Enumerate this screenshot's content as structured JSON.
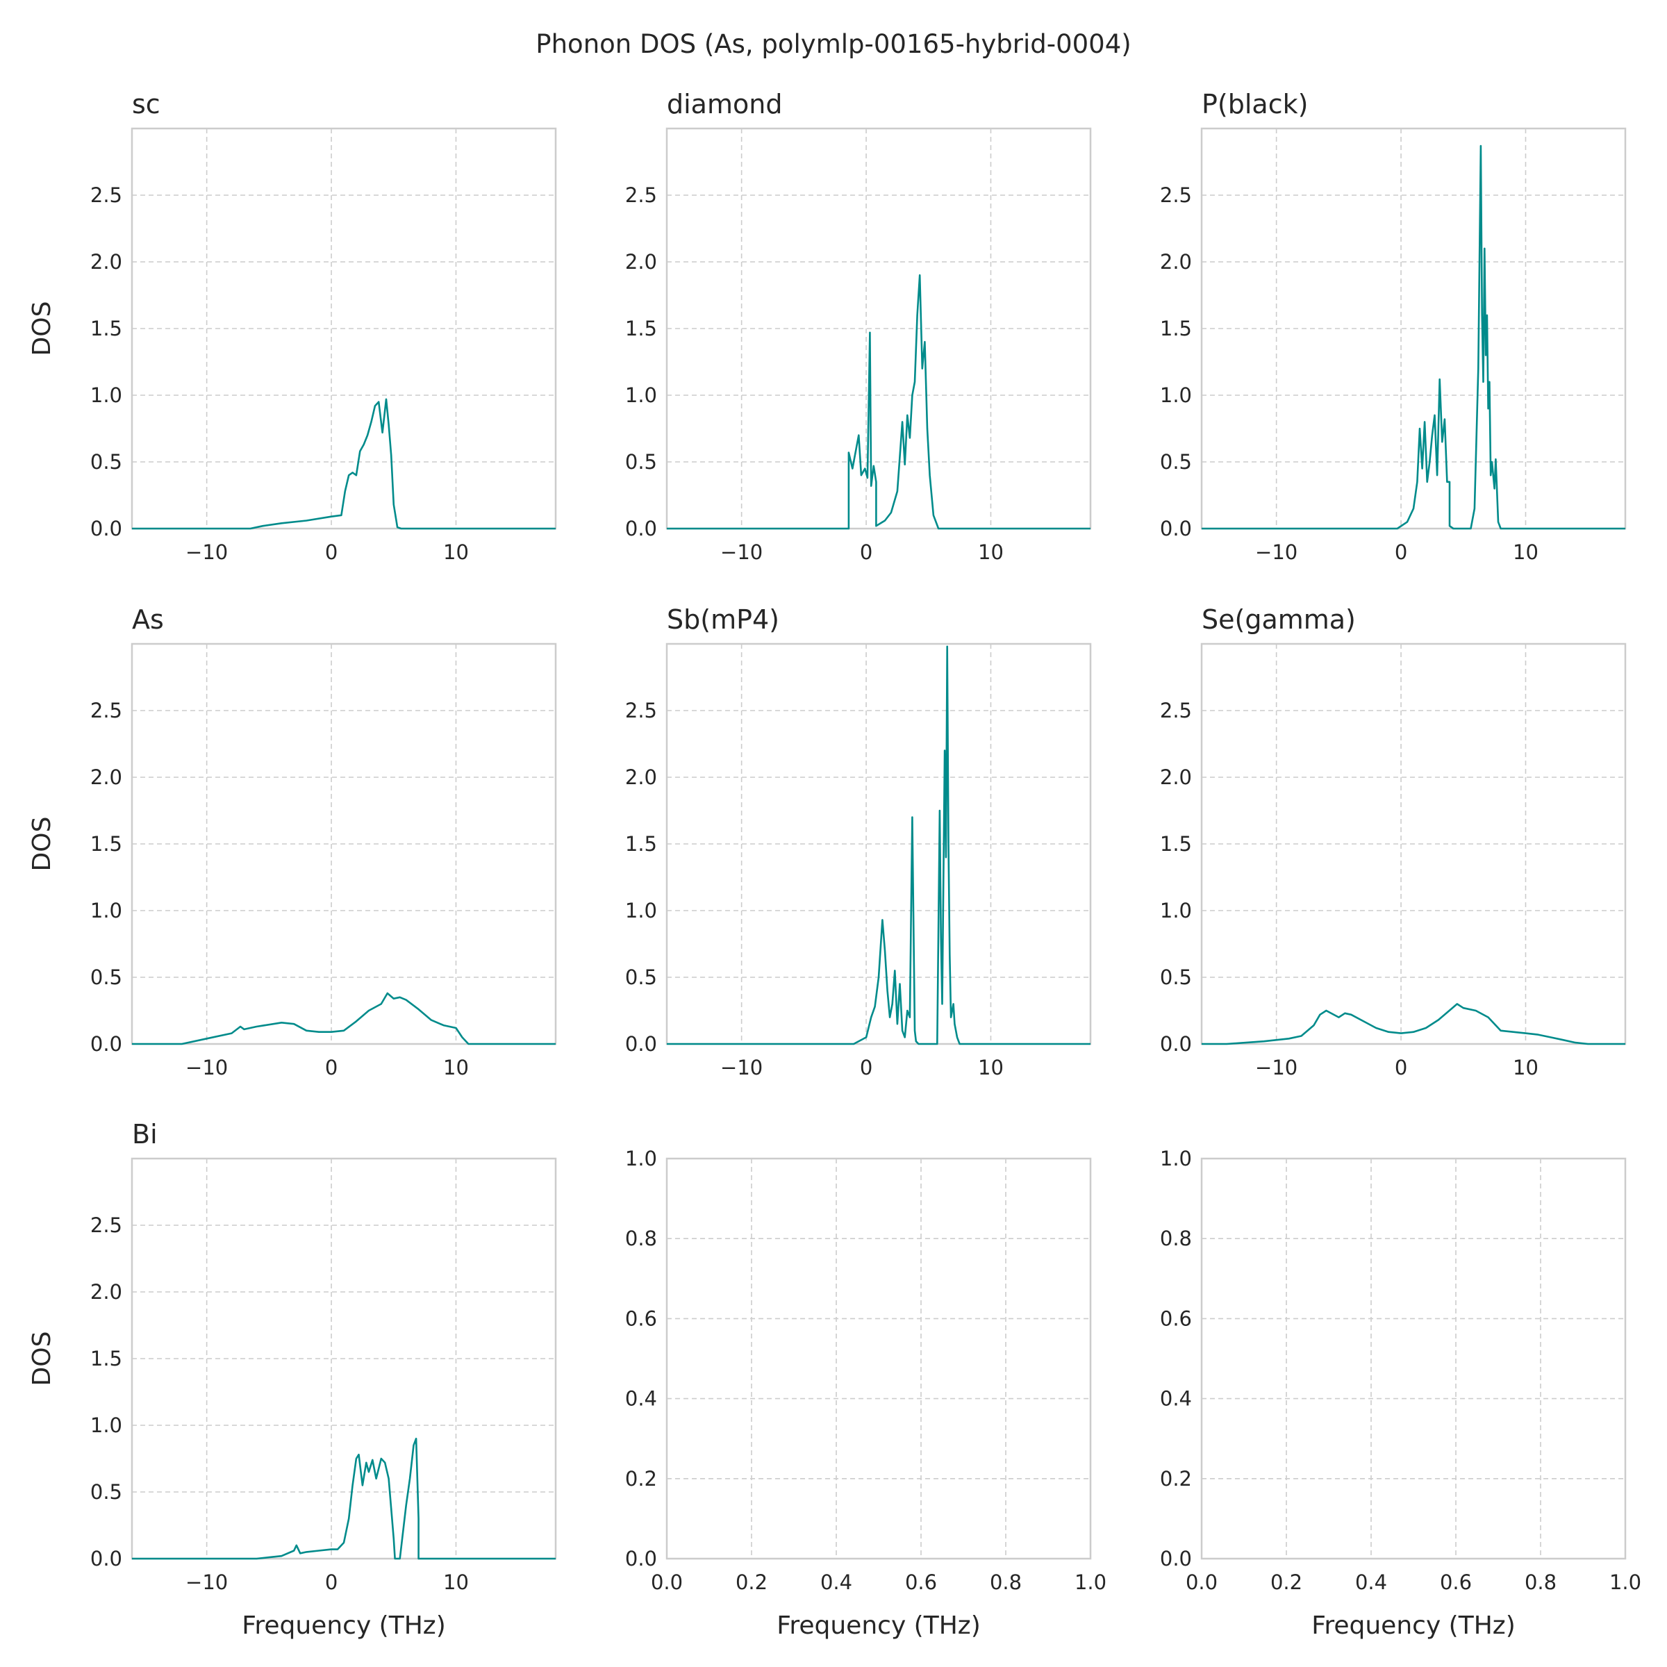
{
  "figure": {
    "title": "Phonon DOS (As, polymlp-00165-hybrid-0004)",
    "line_color": "#008b8b",
    "grid_color": "#cccccc"
  },
  "chart_data": [
    {
      "id": "sc",
      "type": "line",
      "title": "sc",
      "xlabel": "",
      "ylabel": "DOS",
      "xlim": [
        -16,
        18
      ],
      "ylim": [
        0,
        3.0
      ],
      "xticks": [
        -10,
        0,
        10
      ],
      "xticklabels": [
        "−10",
        "0",
        "10"
      ],
      "yticks": [
        0,
        0.5,
        1.0,
        1.5,
        2.0,
        2.5
      ],
      "yticklabels": [
        "0.0",
        "0.5",
        "1.0",
        "1.5",
        "2.0",
        "2.5"
      ],
      "series": [
        {
          "name": "DOS",
          "x": [
            -16,
            -6.5,
            -5.5,
            -4,
            -2,
            0,
            0.8,
            1.1,
            1.4,
            1.7,
            2.0,
            2.3,
            2.6,
            2.9,
            3.2,
            3.5,
            3.8,
            4.1,
            4.4,
            4.6,
            4.8,
            5.0,
            5.3,
            5.6,
            6.5,
            18
          ],
          "y": [
            0,
            0,
            0.02,
            0.04,
            0.06,
            0.09,
            0.1,
            0.28,
            0.4,
            0.42,
            0.4,
            0.58,
            0.63,
            0.7,
            0.8,
            0.92,
            0.95,
            0.72,
            0.97,
            0.78,
            0.55,
            0.18,
            0.01,
            0,
            0,
            0
          ]
        }
      ]
    },
    {
      "id": "diamond",
      "type": "line",
      "title": "diamond",
      "xlabel": "",
      "ylabel": "",
      "xlim": [
        -16,
        18
      ],
      "ylim": [
        0,
        3.0
      ],
      "xticks": [
        -10,
        0,
        10
      ],
      "xticklabels": [
        "−10",
        "0",
        "10"
      ],
      "yticks": [
        0,
        0.5,
        1.0,
        1.5,
        2.0,
        2.5
      ],
      "yticklabels": [
        "0.0",
        "0.5",
        "1.0",
        "1.5",
        "2.0",
        "2.5"
      ],
      "series": [
        {
          "name": "DOS",
          "x": [
            -16,
            -1.4,
            -1.4,
            -1.1,
            -0.8,
            -0.6,
            -0.4,
            -0.1,
            0.1,
            0.3,
            0.4,
            0.6,
            0.8,
            0.8,
            1.5,
            2.0,
            2.5,
            2.9,
            3.1,
            3.3,
            3.5,
            3.7,
            3.9,
            4.1,
            4.3,
            4.5,
            4.7,
            4.9,
            5.1,
            5.4,
            5.8,
            18
          ],
          "y": [
            0,
            0,
            0.57,
            0.45,
            0.6,
            0.7,
            0.4,
            0.45,
            0.38,
            1.47,
            0.32,
            0.47,
            0.35,
            0.02,
            0.06,
            0.12,
            0.28,
            0.8,
            0.48,
            0.85,
            0.68,
            1.0,
            1.1,
            1.6,
            1.9,
            1.2,
            1.4,
            0.75,
            0.4,
            0.1,
            0,
            0
          ]
        }
      ]
    },
    {
      "id": "pblack",
      "type": "line",
      "title": "P(black)",
      "xlabel": "",
      "ylabel": "",
      "xlim": [
        -16,
        18
      ],
      "ylim": [
        0,
        3.0
      ],
      "xticks": [
        -10,
        0,
        10
      ],
      "xticklabels": [
        "−10",
        "0",
        "10"
      ],
      "yticks": [
        0,
        0.5,
        1.0,
        1.5,
        2.0,
        2.5
      ],
      "yticklabels": [
        "0.0",
        "0.5",
        "1.0",
        "1.5",
        "2.0",
        "2.5"
      ],
      "series": [
        {
          "name": "DOS",
          "x": [
            -16,
            -0.3,
            0.5,
            1.0,
            1.3,
            1.5,
            1.7,
            1.9,
            2.1,
            2.3,
            2.5,
            2.7,
            2.9,
            3.1,
            3.3,
            3.5,
            3.7,
            3.9,
            3.9,
            4.2,
            5.6,
            5.9,
            6.2,
            6.4,
            6.5,
            6.6,
            6.7,
            6.8,
            6.9,
            7.0,
            7.1,
            7.2,
            7.3,
            7.5,
            7.6,
            7.8,
            8.0,
            18
          ],
          "y": [
            0,
            0,
            0.05,
            0.15,
            0.35,
            0.75,
            0.45,
            0.8,
            0.35,
            0.5,
            0.7,
            0.85,
            0.4,
            1.12,
            0.65,
            0.82,
            0.35,
            0.35,
            0.02,
            0,
            0,
            0.15,
            1.2,
            2.87,
            1.6,
            1.1,
            2.1,
            1.3,
            1.6,
            0.9,
            1.1,
            0.4,
            0.5,
            0.3,
            0.52,
            0.05,
            0,
            0
          ]
        }
      ]
    },
    {
      "id": "as",
      "type": "line",
      "title": "As",
      "xlabel": "",
      "ylabel": "DOS",
      "xlim": [
        -16,
        18
      ],
      "ylim": [
        0,
        3.0
      ],
      "xticks": [
        -10,
        0,
        10
      ],
      "xticklabels": [
        "−10",
        "0",
        "10"
      ],
      "yticks": [
        0,
        0.5,
        1.0,
        1.5,
        2.0,
        2.5
      ],
      "yticklabels": [
        "0.0",
        "0.5",
        "1.0",
        "1.5",
        "2.0",
        "2.5"
      ],
      "series": [
        {
          "name": "DOS",
          "x": [
            -16,
            -12,
            -10,
            -8,
            -7.3,
            -7,
            -6,
            -4,
            -3,
            -2,
            -1,
            0,
            1,
            2,
            3,
            4,
            4.5,
            5,
            5.5,
            6,
            7,
            8,
            9,
            10,
            10.5,
            11,
            18
          ],
          "y": [
            0,
            0,
            0.04,
            0.08,
            0.13,
            0.11,
            0.13,
            0.16,
            0.15,
            0.1,
            0.09,
            0.09,
            0.1,
            0.17,
            0.25,
            0.3,
            0.38,
            0.34,
            0.35,
            0.33,
            0.26,
            0.18,
            0.14,
            0.12,
            0.05,
            0,
            0
          ]
        }
      ]
    },
    {
      "id": "sbmp4",
      "type": "line",
      "title": "Sb(mP4)",
      "xlabel": "",
      "ylabel": "",
      "xlim": [
        -16,
        18
      ],
      "ylim": [
        0,
        3.0
      ],
      "xticks": [
        -10,
        0,
        10
      ],
      "xticklabels": [
        "−10",
        "0",
        "10"
      ],
      "yticks": [
        0,
        0.5,
        1.0,
        1.5,
        2.0,
        2.5
      ],
      "yticklabels": [
        "0.0",
        "0.5",
        "1.0",
        "1.5",
        "2.0",
        "2.5"
      ],
      "series": [
        {
          "name": "DOS",
          "x": [
            -16,
            -1,
            0,
            0.4,
            0.7,
            1.0,
            1.3,
            1.5,
            1.7,
            1.9,
            2.1,
            2.3,
            2.5,
            2.7,
            2.9,
            3.1,
            3.3,
            3.5,
            3.7,
            3.9,
            4.0,
            4.2,
            5.7,
            5.9,
            6.0,
            6.1,
            6.3,
            6.4,
            6.5,
            6.6,
            6.7,
            6.8,
            7.0,
            7.1,
            7.3,
            7.5,
            7.7,
            18
          ],
          "y": [
            0,
            0,
            0.05,
            0.2,
            0.28,
            0.5,
            0.93,
            0.7,
            0.4,
            0.2,
            0.3,
            0.55,
            0.15,
            0.45,
            0.1,
            0.05,
            0.25,
            0.2,
            1.7,
            0.1,
            0.02,
            0,
            0,
            1.75,
            0.8,
            0.3,
            2.2,
            1.4,
            2.98,
            1.5,
            0.67,
            0.2,
            0.3,
            0.15,
            0.05,
            0,
            0,
            0
          ]
        }
      ]
    },
    {
      "id": "segamma",
      "type": "line",
      "title": "Se(gamma)",
      "xlabel": "",
      "ylabel": "",
      "xlim": [
        -16,
        18
      ],
      "ylim": [
        0,
        3.0
      ],
      "xticks": [
        -10,
        0,
        10
      ],
      "xticklabels": [
        "−10",
        "0",
        "10"
      ],
      "yticks": [
        0,
        0.5,
        1.0,
        1.5,
        2.0,
        2.5
      ],
      "yticklabels": [
        "0.0",
        "0.5",
        "1.0",
        "1.5",
        "2.0",
        "2.5"
      ],
      "series": [
        {
          "name": "DOS",
          "x": [
            -16,
            -14,
            -11,
            -9,
            -8,
            -7,
            -6.5,
            -6,
            -5,
            -4.5,
            -4,
            -3,
            -2,
            -1,
            0,
            1,
            2,
            3,
            4,
            4.5,
            5,
            6,
            7,
            8,
            9,
            10,
            11,
            12,
            13,
            14,
            15,
            18
          ],
          "y": [
            0,
            0,
            0.02,
            0.04,
            0.06,
            0.14,
            0.22,
            0.25,
            0.2,
            0.23,
            0.22,
            0.17,
            0.12,
            0.09,
            0.08,
            0.09,
            0.12,
            0.18,
            0.26,
            0.3,
            0.27,
            0.25,
            0.2,
            0.1,
            0.09,
            0.08,
            0.07,
            0.05,
            0.03,
            0.01,
            0,
            0
          ]
        }
      ]
    },
    {
      "id": "bi",
      "type": "line",
      "title": "Bi",
      "xlabel": "Frequency (THz)",
      "ylabel": "DOS",
      "xlim": [
        -16,
        18
      ],
      "ylim": [
        0,
        3.0
      ],
      "xticks": [
        -10,
        0,
        10
      ],
      "xticklabels": [
        "−10",
        "0",
        "10"
      ],
      "yticks": [
        0,
        0.5,
        1.0,
        1.5,
        2.0,
        2.5
      ],
      "yticklabels": [
        "0.0",
        "0.5",
        "1.0",
        "1.5",
        "2.0",
        "2.5"
      ],
      "series": [
        {
          "name": "DOS",
          "x": [
            -16,
            -6,
            -5,
            -4,
            -3,
            -2.8,
            -2.5,
            -2,
            -1,
            0,
            0.5,
            1,
            1.4,
            1.7,
            2,
            2.2,
            2.5,
            2.8,
            3,
            3.3,
            3.6,
            4,
            4.3,
            4.6,
            5,
            5.1,
            5.5,
            6,
            6.3,
            6.6,
            6.8,
            7.0,
            7.0,
            8,
            18
          ],
          "y": [
            0,
            0,
            0.01,
            0.02,
            0.06,
            0.1,
            0.04,
            0.05,
            0.06,
            0.07,
            0.07,
            0.12,
            0.3,
            0.55,
            0.75,
            0.78,
            0.55,
            0.72,
            0.65,
            0.74,
            0.6,
            0.75,
            0.72,
            0.6,
            0.15,
            0,
            0,
            0.4,
            0.6,
            0.85,
            0.9,
            0.3,
            0,
            0,
            0
          ]
        }
      ]
    },
    {
      "id": "empty1",
      "type": "line",
      "title": "",
      "xlabel": "Frequency (THz)",
      "ylabel": "",
      "xlim": [
        0,
        1
      ],
      "ylim": [
        0,
        1
      ],
      "xticks": [
        0,
        0.2,
        0.4,
        0.6,
        0.8,
        1.0
      ],
      "xticklabels": [
        "0.0",
        "0.2",
        "0.4",
        "0.6",
        "0.8",
        "1.0"
      ],
      "yticks": [
        0,
        0.2,
        0.4,
        0.6,
        0.8,
        1.0
      ],
      "yticklabels": [
        "0.0",
        "0.2",
        "0.4",
        "0.6",
        "0.8",
        "1.0"
      ],
      "series": []
    },
    {
      "id": "empty2",
      "type": "line",
      "title": "",
      "xlabel": "Frequency (THz)",
      "ylabel": "",
      "xlim": [
        0,
        1
      ],
      "ylim": [
        0,
        1
      ],
      "xticks": [
        0,
        0.2,
        0.4,
        0.6,
        0.8,
        1.0
      ],
      "xticklabels": [
        "0.0",
        "0.2",
        "0.4",
        "0.6",
        "0.8",
        "1.0"
      ],
      "yticks": [
        0,
        0.2,
        0.4,
        0.6,
        0.8,
        1.0
      ],
      "yticklabels": [
        "0.0",
        "0.2",
        "0.4",
        "0.6",
        "0.8",
        "1.0"
      ],
      "series": []
    }
  ]
}
